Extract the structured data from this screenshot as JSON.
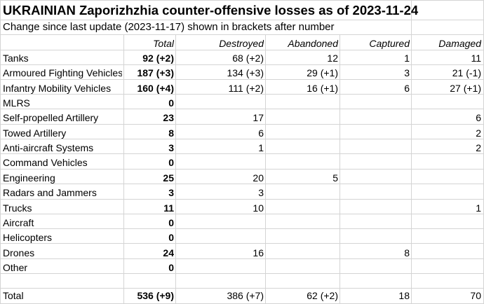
{
  "title": "UKRAINIAN Zaporizhzhia counter-offensive losses as of 2023-11-24",
  "subtitle": "Change since last update (2023-11-17) shown in brackets after number",
  "columns": [
    "Total",
    "Destroyed",
    "Abandoned",
    "Captured",
    "Damaged"
  ],
  "rows": [
    {
      "label": "Tanks",
      "total": "92 (+2)",
      "destroyed": "68 (+2)",
      "abandoned": "12",
      "captured": "1",
      "damaged": "11"
    },
    {
      "label": "Armoured Fighting Vehicles",
      "total": "187 (+3)",
      "destroyed": "134 (+3)",
      "abandoned": "29 (+1)",
      "captured": "3",
      "damaged": "21 (-1)"
    },
    {
      "label": "Infantry Mobility Vehicles",
      "total": "160 (+4)",
      "destroyed": "111 (+2)",
      "abandoned": "16 (+1)",
      "captured": "6",
      "damaged": "27 (+1)"
    },
    {
      "label": "MLRS",
      "total": "0",
      "destroyed": "",
      "abandoned": "",
      "captured": "",
      "damaged": ""
    },
    {
      "label": "Self-propelled Artillery",
      "total": "23",
      "destroyed": "17",
      "abandoned": "",
      "captured": "",
      "damaged": "6"
    },
    {
      "label": "Towed Artillery",
      "total": "8",
      "destroyed": "6",
      "abandoned": "",
      "captured": "",
      "damaged": "2"
    },
    {
      "label": "Anti-aircraft Systems",
      "total": "3",
      "destroyed": "1",
      "abandoned": "",
      "captured": "",
      "damaged": "2"
    },
    {
      "label": "Command Vehicles",
      "total": "0",
      "destroyed": "",
      "abandoned": "",
      "captured": "",
      "damaged": ""
    },
    {
      "label": "Engineering",
      "total": "25",
      "destroyed": "20",
      "abandoned": "5",
      "captured": "",
      "damaged": ""
    },
    {
      "label": "Radars and Jammers",
      "total": "3",
      "destroyed": "3",
      "abandoned": "",
      "captured": "",
      "damaged": ""
    },
    {
      "label": "Trucks",
      "total": "11",
      "destroyed": "10",
      "abandoned": "",
      "captured": "",
      "damaged": "1"
    },
    {
      "label": "Aircraft",
      "total": "0",
      "destroyed": "",
      "abandoned": "",
      "captured": "",
      "damaged": ""
    },
    {
      "label": "Helicopters",
      "total": "0",
      "destroyed": "",
      "abandoned": "",
      "captured": "",
      "damaged": ""
    },
    {
      "label": "Drones",
      "total": "24",
      "destroyed": "16",
      "abandoned": "",
      "captured": "8",
      "damaged": ""
    },
    {
      "label": "Other",
      "total": "0",
      "destroyed": "",
      "abandoned": "",
      "captured": "",
      "damaged": ""
    }
  ],
  "total_row": {
    "label": "Total",
    "total": "536 (+9)",
    "destroyed": "386 (+7)",
    "abandoned": "62 (+2)",
    "captured": "18",
    "damaged": "70"
  },
  "colors": {
    "gridline": "#d4d4d4",
    "background": "#ffffff",
    "text": "#000000"
  }
}
